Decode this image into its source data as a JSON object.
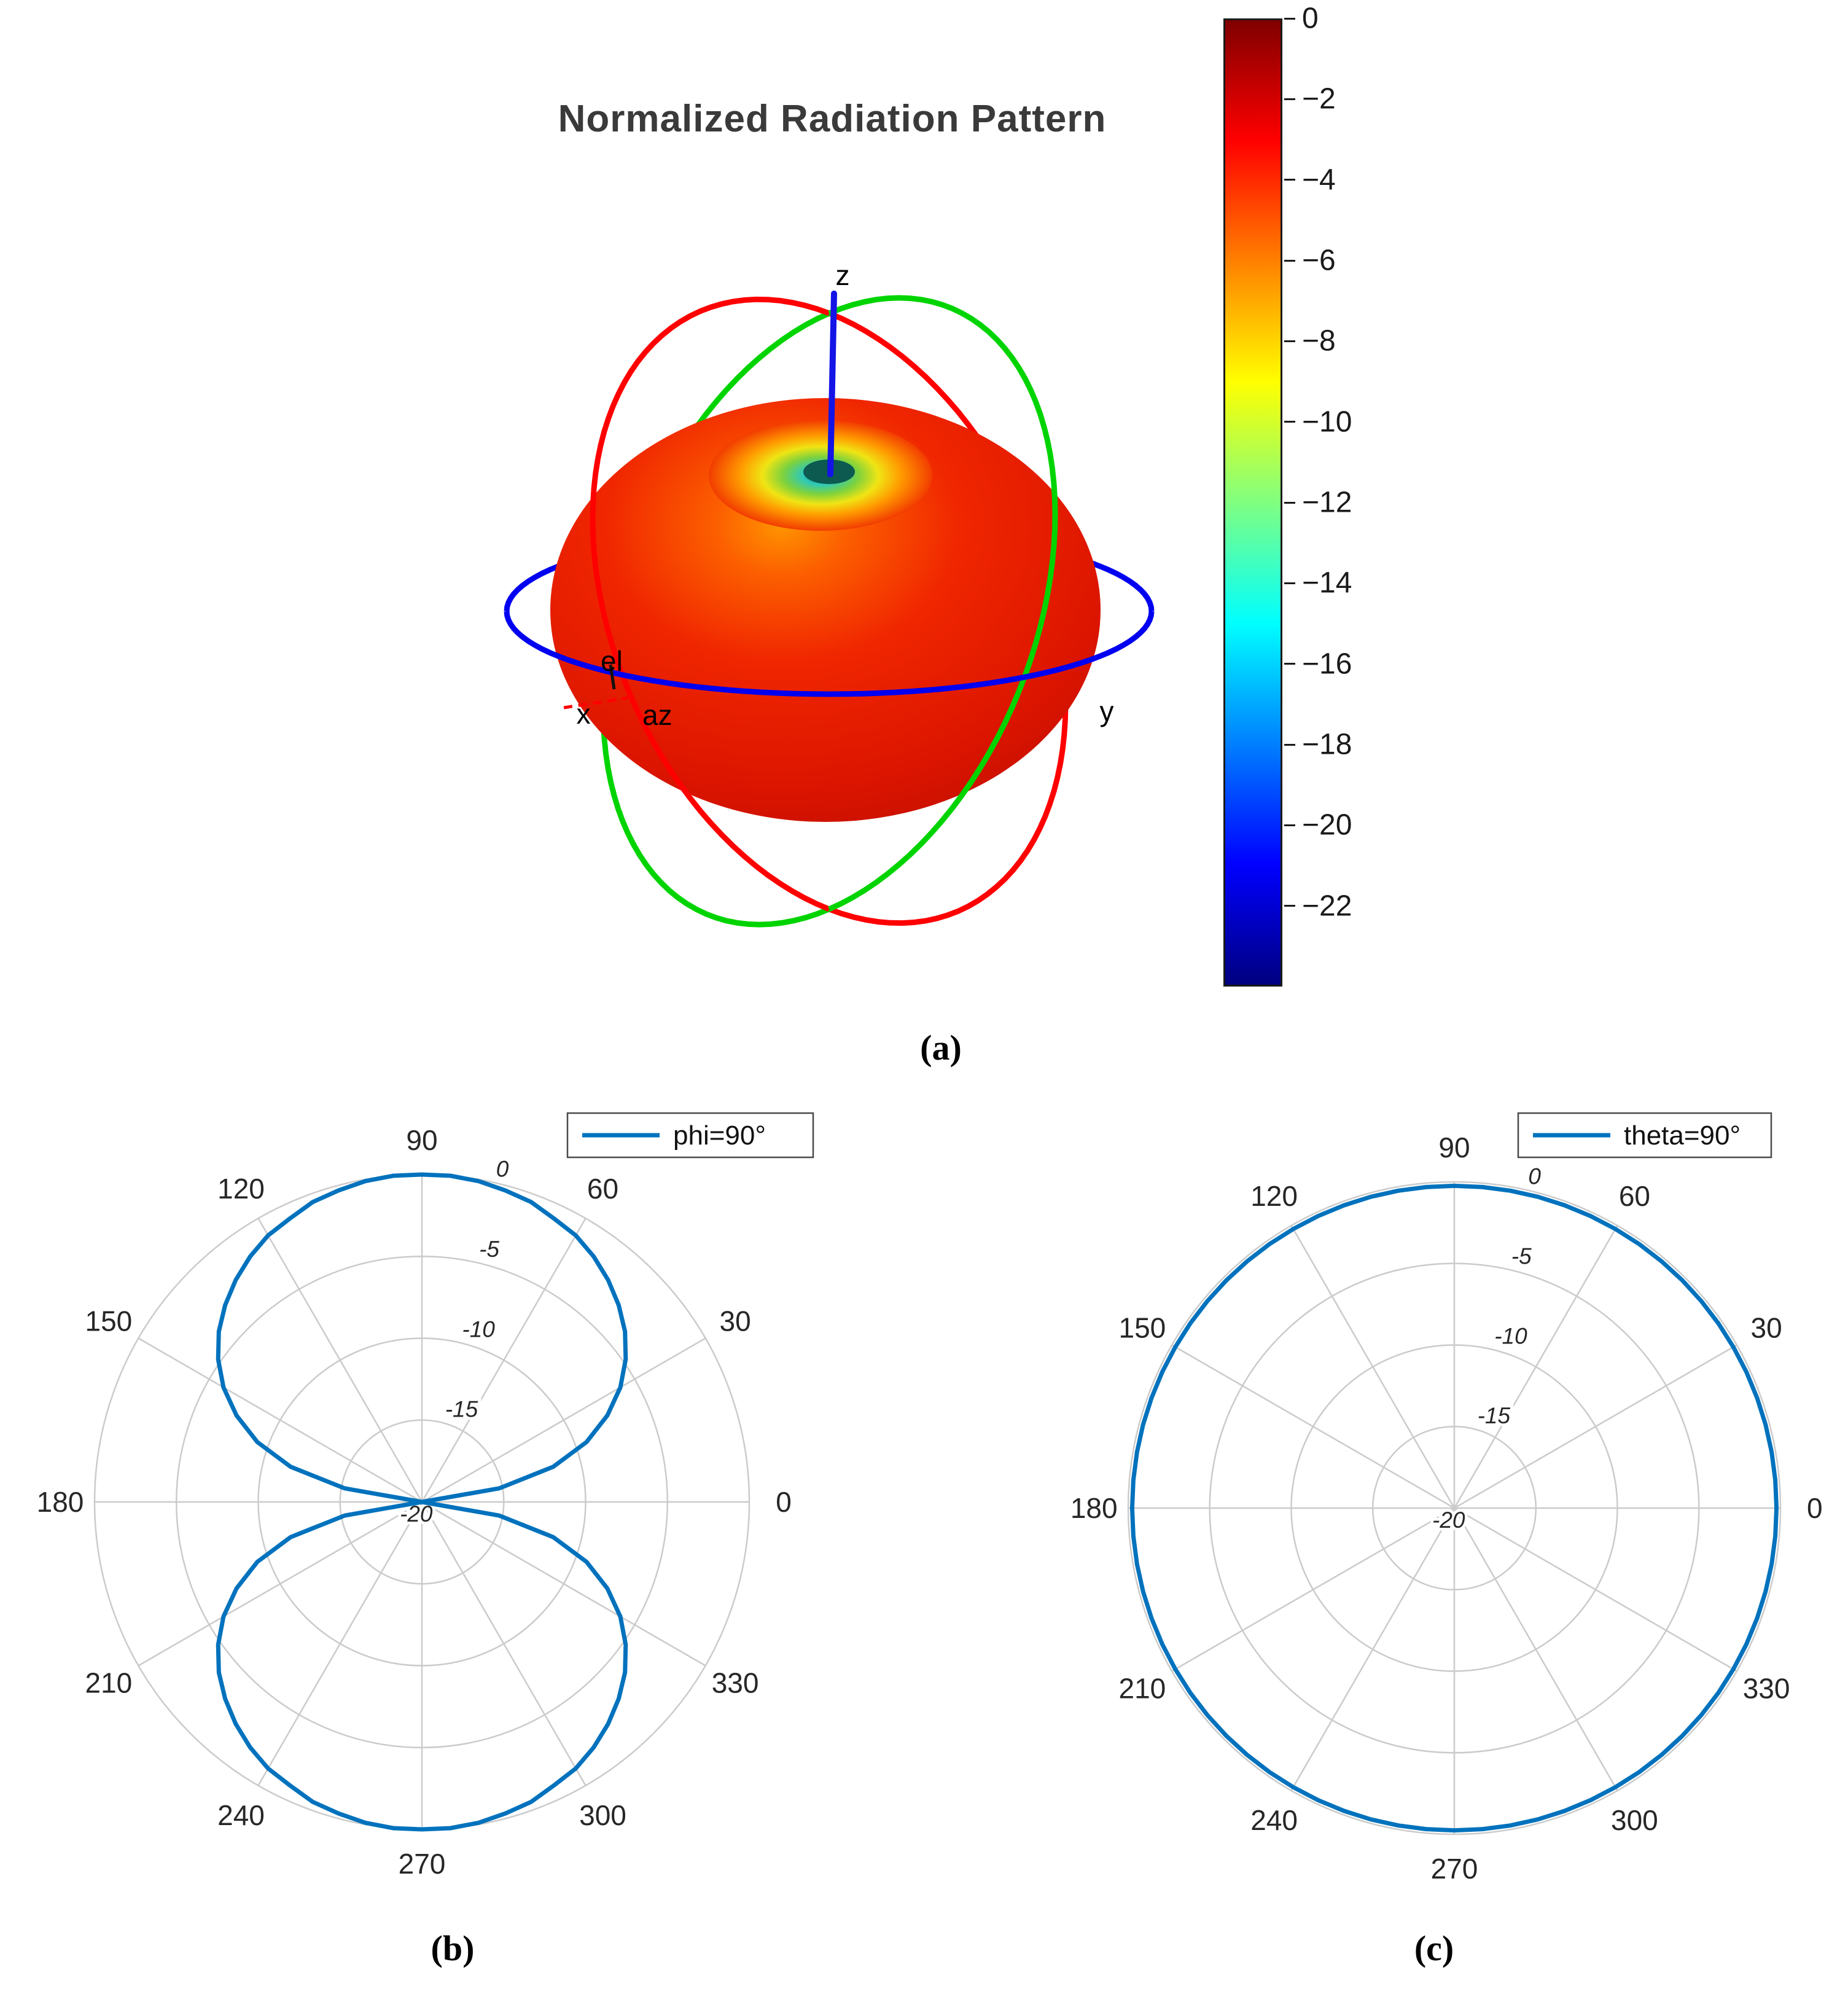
{
  "figure": {
    "background": "#ffffff",
    "accent_blue": "#0072BD",
    "grid_gray": "#cbcbcb"
  },
  "panel_a": {
    "caption": "(a)",
    "title": "Normalized Radiation Pattern",
    "axis_labels": {
      "z": "z",
      "x": "x",
      "y": "y",
      "az": "az",
      "el": "el"
    },
    "ring_colors": {
      "equator": "#0000f0",
      "xz": "#ff0000",
      "yz": "#00d400",
      "z_axis": "#1414e6"
    },
    "colorbar": {
      "colormap": "jet",
      "value_range": [
        0,
        -24
      ],
      "ticks": [
        0,
        -2,
        -4,
        -6,
        -8,
        -10,
        -12,
        -14,
        -16,
        -18,
        -20,
        -22
      ],
      "stops": [
        {
          "at": 0.0,
          "color": "#800000"
        },
        {
          "at": 0.125,
          "color": "#ff0000"
        },
        {
          "at": 0.25,
          "color": "#ff8000"
        },
        {
          "at": 0.375,
          "color": "#ffff00"
        },
        {
          "at": 0.5,
          "color": "#80ff80"
        },
        {
          "at": 0.625,
          "color": "#00ffff"
        },
        {
          "at": 0.875,
          "color": "#0000ff"
        },
        {
          "at": 1.0,
          "color": "#000080"
        }
      ]
    }
  },
  "panel_b": {
    "caption": "(b)"
  },
  "panel_c": {
    "caption": "(c)"
  },
  "chart_data": [
    {
      "type": "surface-3d-polar",
      "panel": "a",
      "title": "Normalized Radiation Pattern",
      "quantity": "normalized gain (dB)",
      "colormap": "jet",
      "colorbar_ticks_db": [
        0,
        -2,
        -4,
        -6,
        -8,
        -10,
        -12,
        -14,
        -16,
        -18,
        -20,
        -22
      ],
      "colorbar_range_db": [
        0,
        -24
      ],
      "axes": [
        "x",
        "y",
        "z"
      ],
      "angle_axes": [
        "az",
        "el"
      ],
      "pattern": "dipole-like toroid: 0 dB (dark red) around the equator, deep null (yellow-green-cyan dimple) along the +z axis"
    },
    {
      "type": "line-polar",
      "panel": "b",
      "legend": "phi=90°",
      "angle_tick_labels_deg": [
        0,
        30,
        60,
        90,
        120,
        150,
        180,
        210,
        240,
        270,
        300,
        330
      ],
      "r_tick_labels_db": [
        0,
        -5,
        -10,
        -15,
        -20
      ],
      "r_range_db": [
        -20,
        0
      ],
      "angle_step_deg": 5,
      "values_db": [
        -20,
        -20,
        -15.2,
        -11.7,
        -9.3,
        -7.5,
        -6,
        -4.8,
        -3.8,
        -3,
        -2.3,
        -1.7,
        -1.2,
        -0.9,
        -0.5,
        -0.3,
        -0.1,
        0,
        0,
        0,
        -0.1,
        -0.3,
        -0.5,
        -0.9,
        -1.2,
        -1.7,
        -2.3,
        -3,
        -3.8,
        -4.8,
        -6,
        -7.5,
        -9.3,
        -11.7,
        -15.2,
        -20,
        -20,
        -20,
        -15.2,
        -11.7,
        -9.3,
        -7.5,
        -6,
        -4.8,
        -3.8,
        -3,
        -2.3,
        -1.7,
        -1.2,
        -0.9,
        -0.5,
        -0.3,
        -0.1,
        0,
        0,
        0,
        -0.1,
        -0.3,
        -0.5,
        -0.9,
        -1.2,
        -1.7,
        -2.3,
        -3,
        -3.8,
        -4.8,
        -6,
        -7.5,
        -9.3,
        -11.7,
        -15.2,
        -20
      ],
      "description": "Elevation cut r(θ)=20·log10|sin θ| dB: figure-eight, nulls at 0°/180°, maxima 0 dB at 90°/270°"
    },
    {
      "type": "line-polar",
      "panel": "c",
      "legend": "theta=90°",
      "angle_tick_labels_deg": [
        0,
        30,
        60,
        90,
        120,
        150,
        180,
        210,
        240,
        270,
        300,
        330
      ],
      "r_tick_labels_db": [
        0,
        -5,
        -10,
        -15,
        -20
      ],
      "r_range_db": [
        -20,
        0
      ],
      "angle_step_deg": 5,
      "constant_db": 0,
      "description": "Azimuth cut: omnidirectional, constant 0 dB circle"
    }
  ]
}
